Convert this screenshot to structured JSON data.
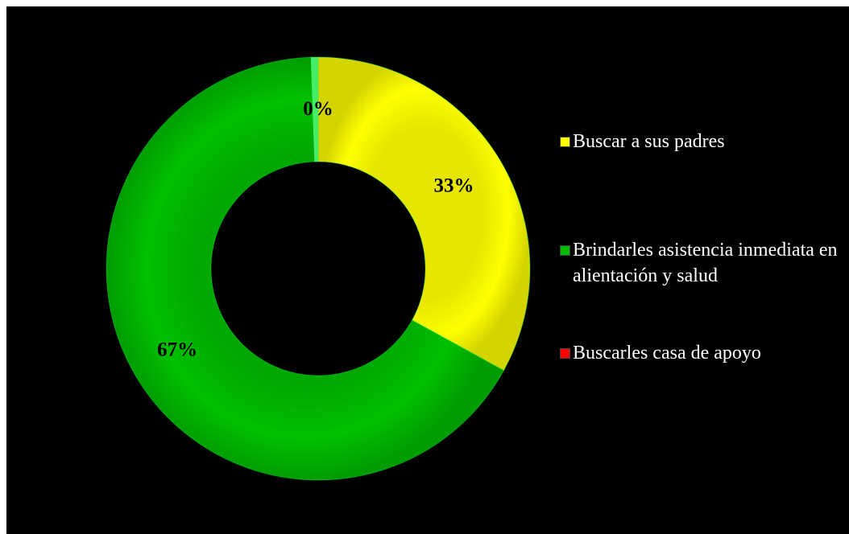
{
  "chart_data": {
    "type": "pie",
    "donut": true,
    "categories": [
      "Buscar a sus padres",
      "Brindarles asistencia inmediata en alientación y salud",
      "Buscarles casa de apoyo"
    ],
    "values": [
      33,
      67,
      0
    ],
    "data_labels": [
      "33%",
      "67%",
      "0%"
    ],
    "colors": [
      "#ffff00",
      "#00bb00",
      "#ff0000"
    ],
    "legend_position": "right",
    "background": "#000000"
  },
  "legend": {
    "items": [
      {
        "label": "Buscar a sus padres",
        "color": "#ffff00"
      },
      {
        "label": "Brindarles asistencia inmediata en alientación y salud",
        "color": "#00bb00"
      },
      {
        "label": "Buscarles casa de apoyo",
        "color": "#ff0000"
      }
    ]
  }
}
